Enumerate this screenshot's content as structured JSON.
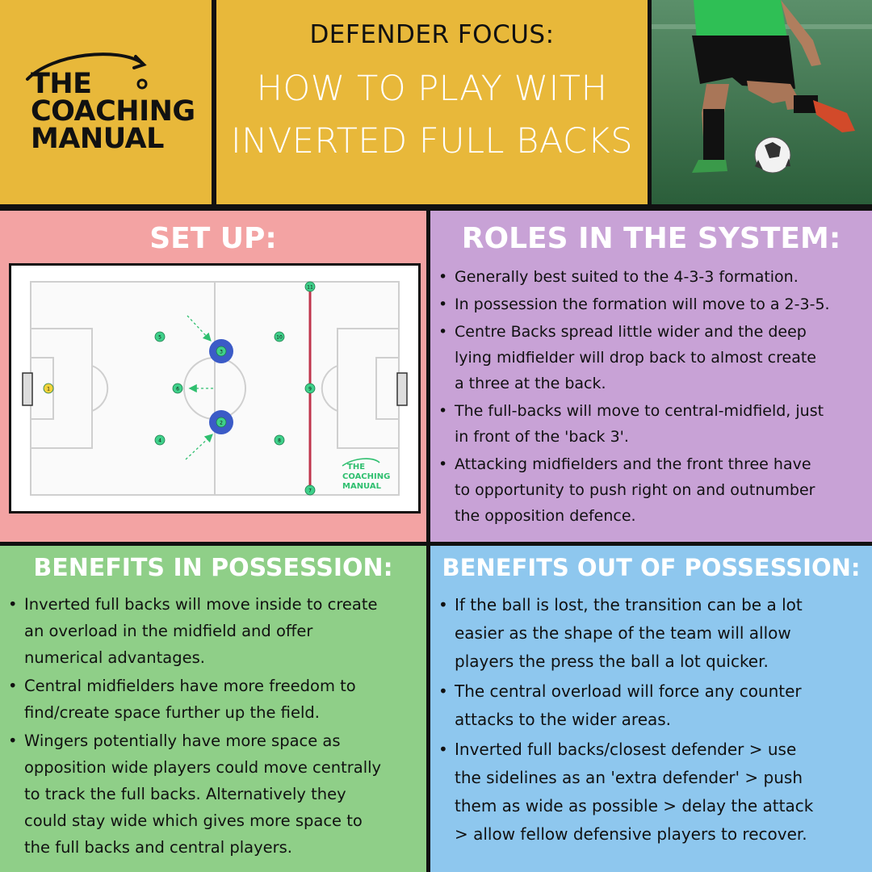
{
  "header": {
    "logo": {
      "line1": "THE",
      "line2": "COACHING",
      "line3": "MANUAL"
    },
    "title_small": "DEFENDER FOCUS:",
    "title_line1": "HOW TO PLAY WITH",
    "title_line2": "INVERTED FULL BACKS"
  },
  "setup": {
    "heading": "SET UP:",
    "players": [
      {
        "number": "1",
        "color": "#f2d23a"
      },
      {
        "number": "4",
        "color": "#3fd08a"
      },
      {
        "number": "5",
        "color": "#3fd08a"
      },
      {
        "number": "6",
        "color": "#3fd08a"
      },
      {
        "number": "8",
        "color": "#3fd08a"
      },
      {
        "number": "10",
        "color": "#3fd08a"
      },
      {
        "number": "9",
        "color": "#3fd08a"
      },
      {
        "number": "11",
        "color": "#3fd08a"
      },
      {
        "number": "7",
        "color": "#3fd08a"
      },
      {
        "number": "3",
        "color": "#3fd08a"
      },
      {
        "number": "2",
        "color": "#3fd08a"
      }
    ],
    "pitch_logo": {
      "line1": "THE",
      "line2": "COACHING",
      "line3": "MANUAL"
    },
    "colors": {
      "highlight_ring": "#3b5bc7",
      "line_red": "#c0354c",
      "arrow": "#2fbf6f"
    }
  },
  "roles": {
    "heading": "ROLES IN THE SYSTEM:",
    "items": [
      {
        "lines": [
          "Generally best suited to the 4-3-3 formation."
        ]
      },
      {
        "lines": [
          "In possession the formation will move to a 2-3-5."
        ]
      },
      {
        "lines": [
          "Centre Backs spread little wider and the deep",
          "lying midfielder will drop back to almost create",
          "a three at the back."
        ]
      },
      {
        "lines": [
          "The full-backs will move to central-midfield, just",
          "in front of the 'back 3'."
        ]
      },
      {
        "lines": [
          "Attacking midfielders and the front three have",
          "to opportunity to push right on and outnumber",
          "the opposition defence."
        ]
      }
    ]
  },
  "benefits_in": {
    "heading": "BENEFITS IN POSSESSION:",
    "items": [
      {
        "lines": [
          "Inverted full backs will move inside to create",
          "an overload in the midfield and offer",
          "numerical advantages."
        ]
      },
      {
        "lines": [
          "Central midfielders have more freedom to",
          "find/create space further up the field."
        ]
      },
      {
        "lines": [
          "Wingers potentially have more space as",
          "opposition wide players could move centrally",
          "to track the full backs. Alternatively they",
          "could stay wide which gives more space to",
          "the full backs and central players."
        ]
      }
    ]
  },
  "benefits_out": {
    "heading": "BENEFITS OUT OF POSSESSION:",
    "items": [
      {
        "lines": [
          "If the ball is lost, the transition can be a lot",
          "easier as the shape of the team will allow",
          "players the press the ball a lot quicker."
        ]
      },
      {
        "lines": [
          "The central overload will force any counter",
          "attacks to the wider areas."
        ]
      },
      {
        "lines": [
          "Inverted full backs/closest defender > use",
          "the sidelines as an 'extra defender' > push",
          "them as wide as possible > delay the attack",
          "> allow fellow defensive players to recover."
        ]
      }
    ]
  },
  "colors": {
    "header_yellow": "#e8b83a",
    "setup_pink": "#f3a3a3",
    "roles_purple": "#c8a2d6",
    "benefits_in_green": "#8fcf88",
    "benefits_out_blue": "#8ec7ee"
  }
}
